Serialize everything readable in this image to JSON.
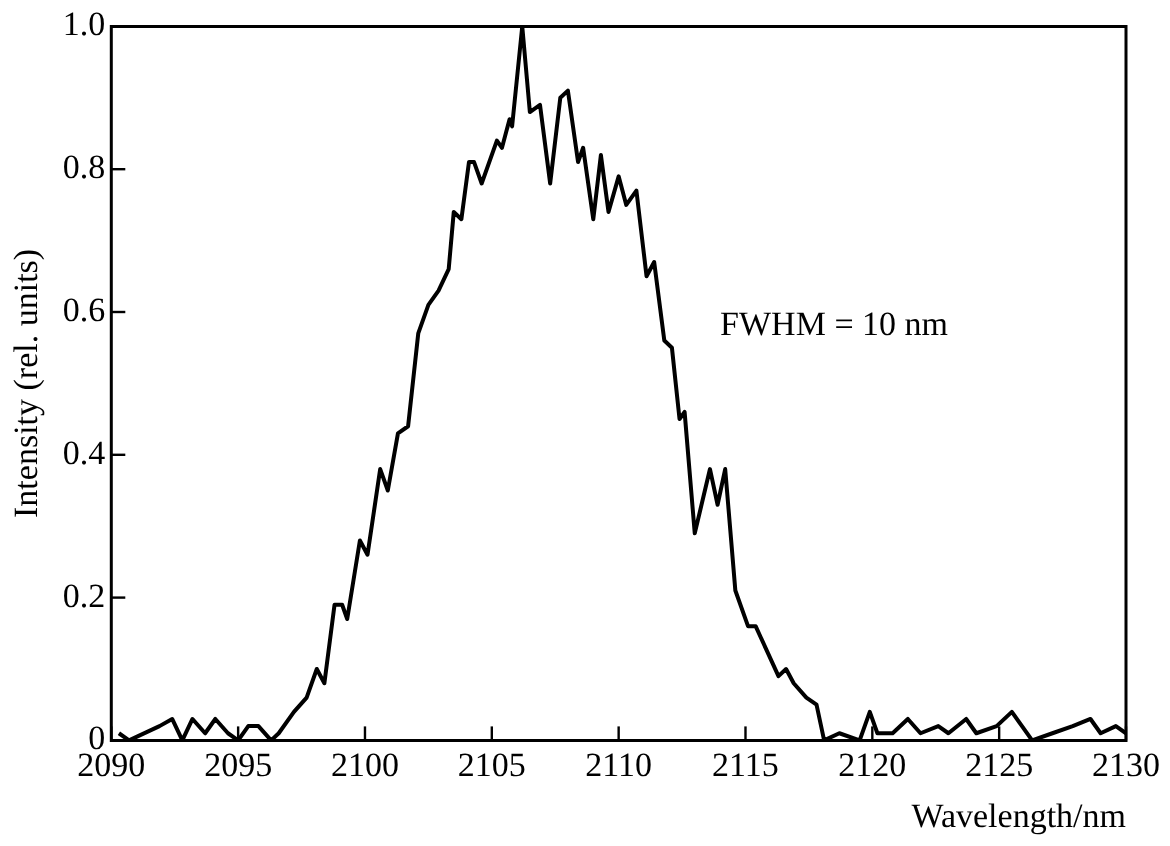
{
  "chart_data": {
    "type": "line",
    "xlabel": "Wavelength/nm",
    "ylabel": "Intensity (rel. units)",
    "annotations": [
      "FWHM = 10 nm"
    ],
    "color": "#000000",
    "marker": "none",
    "line_style": "solid",
    "grid": false,
    "legend": false,
    "xlim": [
      2090,
      2130
    ],
    "xticks": [
      2090,
      2095,
      2100,
      2105,
      2110,
      2115,
      2120,
      2125,
      2130
    ],
    "ylim": [
      0,
      1
    ],
    "yticks": [
      0,
      {
        "value": 0.2,
        "label": "0.2"
      },
      {
        "value": 0.4,
        "label": "0.4"
      },
      {
        "value": 0.6,
        "label": "0.6"
      },
      {
        "value": 0.8,
        "label": "0.8"
      },
      {
        "value": 1,
        "label": "1.0"
      }
    ],
    "x": [
      2090.3,
      2090.7,
      2091.9,
      2092.4,
      2092.8,
      2093.2,
      2093.7,
      2094.1,
      2094.6,
      2095.0,
      2095.4,
      2095.8,
      2096.3,
      2096.6,
      2097.2,
      2097.7,
      2098.1,
      2098.4,
      2098.8,
      2099.1,
      2099.3,
      2099.8,
      2100.1,
      2100.6,
      2100.9,
      2101.3,
      2101.7,
      2102.1,
      2102.5,
      2102.9,
      2103.3,
      2103.5,
      2103.8,
      2104.1,
      2104.3,
      2104.6,
      2105.2,
      2105.4,
      2105.7,
      2105.8,
      2106.2,
      2106.5,
      2106.9,
      2107.3,
      2107.7,
      2108.0,
      2108.4,
      2108.6,
      2109.0,
      2109.3,
      2109.6,
      2110.0,
      2110.3,
      2110.7,
      2111.1,
      2111.4,
      2111.8,
      2112.1,
      2112.4,
      2112.6,
      2113.0,
      2113.6,
      2113.9,
      2114.2,
      2114.6,
      2115.1,
      2115.4,
      2116.3,
      2116.6,
      2116.9,
      2117.4,
      2117.8,
      2118.1,
      2118.7,
      2119.5,
      2119.9,
      2120.2,
      2120.8,
      2121.4,
      2121.9,
      2122.6,
      2123.0,
      2123.7,
      2124.1,
      2124.9,
      2125.5,
      2125.9,
      2126.3,
      2127.1,
      2127.9,
      2128.6,
      2129.0,
      2129.6,
      2130.0
    ],
    "values": [
      0.01,
      0,
      0.02,
      0.03,
      0,
      0.03,
      0.01,
      0.03,
      0.01,
      0,
      0.02,
      0.02,
      0,
      0.01,
      0.04,
      0.06,
      0.1,
      0.08,
      0.19,
      0.19,
      0.17,
      0.28,
      0.26,
      0.38,
      0.35,
      0.43,
      0.44,
      0.57,
      0.61,
      0.63,
      0.66,
      0.74,
      0.73,
      0.81,
      0.81,
      0.78,
      0.84,
      0.83,
      0.87,
      0.86,
      1.0,
      0.88,
      0.89,
      0.78,
      0.9,
      0.91,
      0.81,
      0.83,
      0.73,
      0.82,
      0.74,
      0.79,
      0.75,
      0.77,
      0.65,
      0.67,
      0.56,
      0.55,
      0.45,
      0.46,
      0.29,
      0.38,
      0.33,
      0.38,
      0.21,
      0.16,
      0.16,
      0.09,
      0.1,
      0.08,
      0.06,
      0.05,
      0,
      0.01,
      0,
      0.04,
      0.01,
      0.01,
      0.03,
      0.01,
      0.02,
      0.01,
      0.03,
      0.01,
      0.02,
      0.04,
      0.02,
      0,
      0.01,
      0.02,
      0.03,
      0.01,
      0.02,
      0.01
    ]
  }
}
